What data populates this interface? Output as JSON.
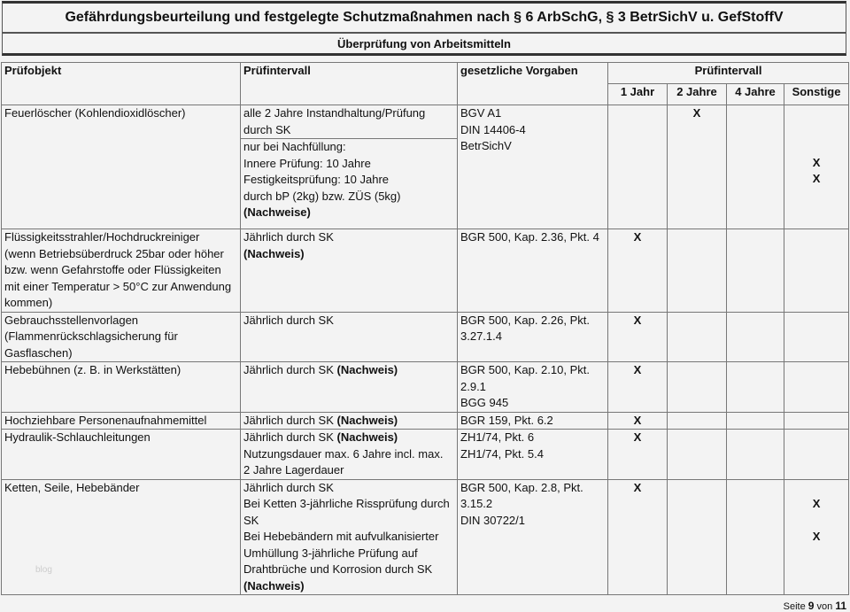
{
  "title": "Gefährdungsbeurteilung und festgelegte Schutzmaßnahmen nach § 6 ArbSchG, § 3 BetrSichV u. GefStoffV",
  "subtitle": "Überprüfung von Arbeitsmitteln",
  "headers": {
    "object": "Prüfobjekt",
    "interval": "Prüfintervall",
    "legal": "gesetzliche Vorgaben",
    "interval_group": "Prüfintervall",
    "sub": [
      "1 Jahr",
      "2 Jahre",
      "4 Jahre",
      "Sonstige"
    ]
  },
  "rows": [
    {
      "object": [
        "Feuerlöscher (Kohlendioxidlöscher)"
      ],
      "interval": [
        [
          {
            "t": "alle 2 Jahre Instandhaltung/Prüfung"
          },
          {
            "t": "durch SK"
          }
        ],
        [
          {
            "t": "nur bei Nachfüllung:"
          },
          {
            "t": "Innere Prüfung: 10 Jahre"
          },
          {
            "t": "Festigkeitsprüfung: 10 Jahre"
          },
          {
            "t": "durch bP (2kg) bzw. ZÜS (5kg)"
          },
          {
            "t": "(Nachweise)",
            "b": true
          }
        ]
      ],
      "legal": [
        "BGV A1",
        "DIN 14406-4",
        "BetrSichV"
      ],
      "marks": [
        [],
        [
          "X"
        ],
        [],
        [
          "",
          "",
          "",
          "X",
          "X"
        ]
      ]
    },
    {
      "object": [
        "Flüssigkeitsstrahler/Hochdruckreiniger",
        "(wenn Betriebsüberdruck 25bar oder höher",
        "bzw. wenn Gefahrstoffe oder Flüssigkeiten",
        "mit einer Temperatur > 50°C zur Anwendung",
        "kommen)"
      ],
      "interval": [
        [
          {
            "t": "Jährlich durch SK"
          },
          {
            "t": "(Nachweis)",
            "b": true
          }
        ]
      ],
      "legal": [
        "BGR 500, Kap. 2.36, Pkt. 4"
      ],
      "marks": [
        [
          "X"
        ],
        [],
        [],
        []
      ]
    },
    {
      "object": [
        "Gebrauchsstellenvorlagen",
        "(Flammenrückschlagsicherung für",
        "Gasflaschen)"
      ],
      "interval": [
        [
          {
            "t": "Jährlich durch SK"
          }
        ]
      ],
      "legal": [
        "BGR 500, Kap. 2.26, Pkt.",
        "3.27.1.4"
      ],
      "marks": [
        [
          "X"
        ],
        [],
        [],
        []
      ]
    },
    {
      "object": [
        "Hebebühnen (z. B. in Werkstätten)"
      ],
      "interval": [
        [
          {
            "t": "Jährlich durch SK ",
            "s": "(Nachweis)"
          }
        ]
      ],
      "legal": [
        "BGR 500, Kap. 2.10, Pkt.",
        "2.9.1",
        "BGG 945"
      ],
      "marks": [
        [
          "X"
        ],
        [],
        [],
        []
      ]
    },
    {
      "object": [
        "Hochziehbare Personenaufnahmemittel"
      ],
      "interval": [
        [
          {
            "t": "Jährlich durch SK ",
            "s": "(Nachweis)"
          }
        ]
      ],
      "legal": [
        "BGR 159, Pkt. 6.2"
      ],
      "marks": [
        [
          "X"
        ],
        [],
        [],
        []
      ]
    },
    {
      "object": [
        "Hydraulik-Schlauchleitungen"
      ],
      "interval": [
        [
          {
            "t": "Jährlich durch SK ",
            "s": "(Nachweis)"
          },
          {
            "t": "Nutzungsdauer max. 6 Jahre incl. max."
          },
          {
            "t": "2 Jahre Lagerdauer"
          }
        ]
      ],
      "legal": [
        "ZH1/74, Pkt. 6",
        "ZH1/74, Pkt. 5.4"
      ],
      "marks": [
        [
          "X"
        ],
        [],
        [],
        []
      ]
    },
    {
      "object": [
        "Ketten, Seile, Hebebänder"
      ],
      "interval": [
        [
          {
            "t": "Jährlich durch SK"
          },
          {
            "t": "Bei Ketten 3-jährliche Rissprüfung durch"
          },
          {
            "t": "SK"
          },
          {
            "t": "Bei Hebebändern mit aufvulkanisierter"
          },
          {
            "t": "Umhüllung 3-jährliche Prüfung auf"
          },
          {
            "t": "Drahtbrüche und Korrosion durch SK"
          },
          {
            "t": "(Nachweis)",
            "b": true
          }
        ]
      ],
      "legal": [
        "BGR 500, Kap. 2.8, Pkt.",
        "3.15.2",
        "DIN 30722/1"
      ],
      "marks": [
        [
          "X"
        ],
        [],
        [],
        [
          "",
          "X",
          "",
          "X"
        ]
      ]
    }
  ],
  "watermark": "blog",
  "footer": {
    "prefix": "Seite",
    "page": "9",
    "middle": "von",
    "total": "11"
  }
}
